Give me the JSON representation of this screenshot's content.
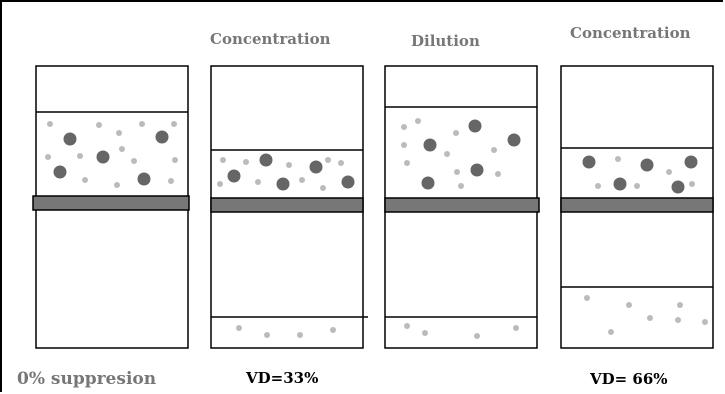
{
  "labels": {
    "top": [
      "Concentration",
      "Dilution",
      "Concentration"
    ],
    "bottom_left": "0% suppresion",
    "vd_1": "VD=33%",
    "vd_2": "VD= 66%"
  },
  "colors": {
    "large_particle": "#666666",
    "small_particle": "#bbbbbb",
    "barrier": "#777777",
    "outline": "#000000",
    "label_grey": "#777777"
  }
}
